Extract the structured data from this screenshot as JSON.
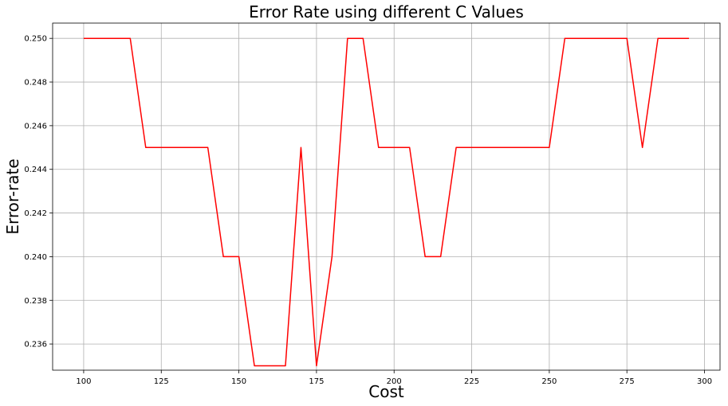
{
  "chart_data": {
    "type": "line",
    "title": "Error Rate using different C Values",
    "xlabel": "Cost",
    "ylabel": "Error-rate",
    "xlim": [
      90,
      305
    ],
    "ylim": [
      0.2348,
      0.2507
    ],
    "xticks": [
      100,
      125,
      150,
      175,
      200,
      225,
      250,
      275,
      300
    ],
    "yticks": [
      0.236,
      0.238,
      0.24,
      0.242,
      0.244,
      0.246,
      0.248,
      0.25
    ],
    "grid": true,
    "x": [
      100,
      105,
      110,
      115,
      120,
      125,
      130,
      135,
      140,
      145,
      150,
      155,
      160,
      165,
      170,
      175,
      180,
      185,
      190,
      195,
      200,
      205,
      210,
      215,
      220,
      225,
      230,
      235,
      240,
      245,
      250,
      255,
      260,
      265,
      270,
      275,
      280,
      285,
      290,
      295
    ],
    "series": [
      {
        "color": "#ff0000",
        "values": [
          0.25,
          0.25,
          0.25,
          0.25,
          0.245,
          0.245,
          0.245,
          0.245,
          0.245,
          0.24,
          0.24,
          0.235,
          0.235,
          0.235,
          0.245,
          0.235,
          0.24,
          0.25,
          0.25,
          0.245,
          0.245,
          0.245,
          0.24,
          0.24,
          0.245,
          0.245,
          0.245,
          0.245,
          0.245,
          0.245,
          0.245,
          0.25,
          0.25,
          0.25,
          0.25,
          0.25,
          0.245,
          0.25,
          0.25,
          0.25
        ]
      }
    ]
  }
}
